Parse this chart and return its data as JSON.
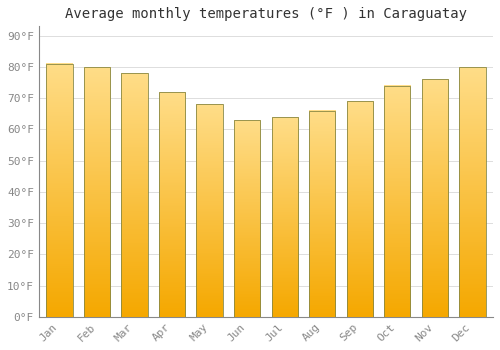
{
  "title": "Average monthly temperatures (°F ) in Caraguatay",
  "months": [
    "Jan",
    "Feb",
    "Mar",
    "Apr",
    "May",
    "Jun",
    "Jul",
    "Aug",
    "Sep",
    "Oct",
    "Nov",
    "Dec"
  ],
  "values": [
    81,
    80,
    78,
    72,
    68,
    63,
    64,
    66,
    69,
    74,
    76,
    80
  ],
  "bar_color_bottom": "#F5A800",
  "bar_color_top": "#FFDD88",
  "bar_edge_color": "#888844",
  "background_color": "#FFFFFF",
  "grid_color": "#DDDDDD",
  "yticks": [
    0,
    10,
    20,
    30,
    40,
    50,
    60,
    70,
    80,
    90
  ],
  "ytick_labels": [
    "0°F",
    "10°F",
    "20°F",
    "30°F",
    "40°F",
    "50°F",
    "60°F",
    "70°F",
    "80°F",
    "90°F"
  ],
  "ylim": [
    0,
    93
  ],
  "title_fontsize": 10,
  "tick_fontsize": 8,
  "font_family": "monospace"
}
